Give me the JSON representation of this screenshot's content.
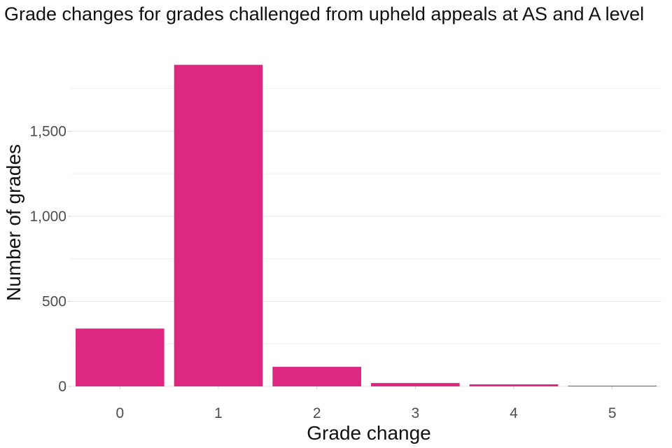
{
  "chart_data": {
    "type": "bar",
    "title": "Grade changes for grades challenged from upheld appeals at AS and A level",
    "xlabel": "Grade change",
    "ylabel": "Number of grades",
    "categories": [
      "0",
      "1",
      "2",
      "3",
      "4",
      "5"
    ],
    "values": [
      340,
      1890,
      115,
      20,
      12,
      4
    ],
    "ylim": [
      0,
      1950
    ],
    "yticks": [
      0,
      500,
      1000,
      1500
    ],
    "ytick_labels": [
      "0",
      "500",
      "1,000",
      "1,500"
    ],
    "grid": true,
    "legend": "none",
    "bar_color": "#de2780"
  }
}
